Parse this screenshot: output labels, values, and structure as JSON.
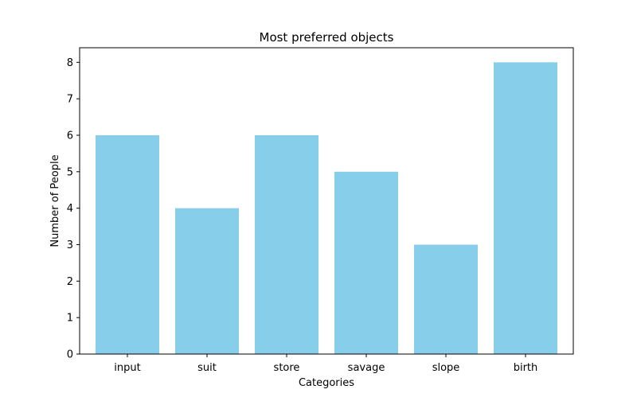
{
  "chart_data": {
    "type": "bar",
    "title": "Most preferred objects",
    "xlabel": "Categories",
    "ylabel": "Number of People",
    "categories": [
      "input",
      "suit",
      "store",
      "savage",
      "slope",
      "birth"
    ],
    "values": [
      6,
      4,
      6,
      5,
      3,
      8
    ],
    "ylim": [
      0,
      8.4
    ],
    "yticks": [
      0,
      1,
      2,
      3,
      4,
      5,
      6,
      7,
      8
    ],
    "bar_color": "#87CEEB",
    "grid": false,
    "legend": "none"
  }
}
